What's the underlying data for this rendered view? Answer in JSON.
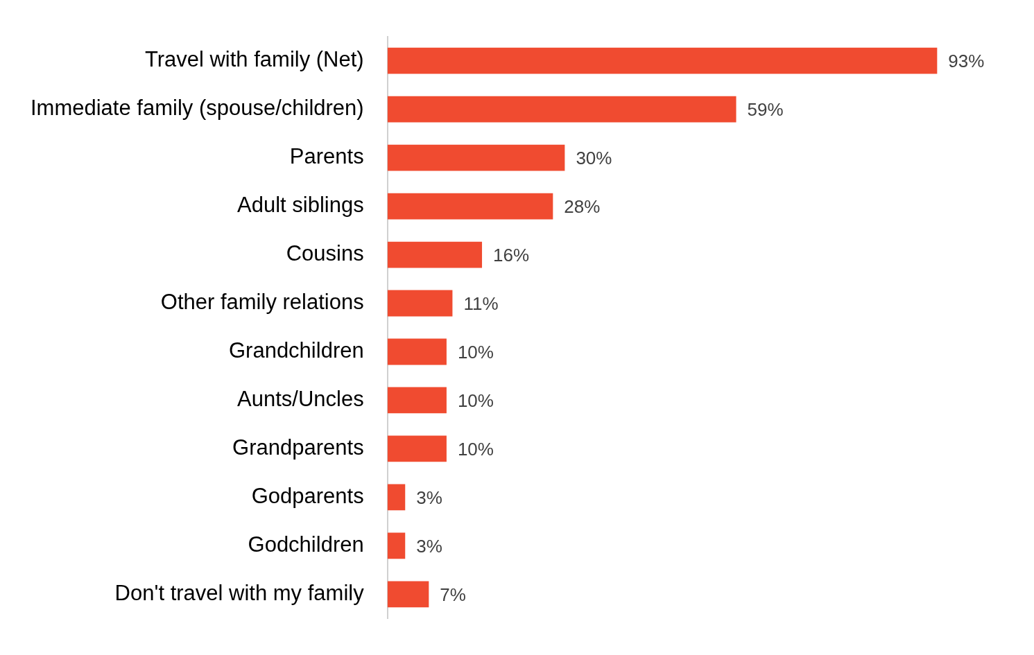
{
  "chart_data": {
    "type": "bar",
    "orientation": "horizontal",
    "categories": [
      "Travel with family (Net)",
      "Immediate family (spouse/children)",
      "Parents",
      "Adult siblings",
      "Cousins",
      "Other family relations",
      "Grandchildren",
      "Aunts/Uncles",
      "Grandparents",
      "Godparents",
      "Godchildren",
      "Don't travel with my family"
    ],
    "values": [
      93,
      59,
      30,
      28,
      16,
      11,
      10,
      10,
      10,
      3,
      3,
      7
    ],
    "value_labels": [
      "93%",
      "59%",
      "30%",
      "28%",
      "16%",
      "11%",
      "10%",
      "10%",
      "10%",
      "3%",
      "3%",
      "7%"
    ],
    "color": "#f04b30",
    "grid": false,
    "tick_labels": "y",
    "legend": false
  }
}
